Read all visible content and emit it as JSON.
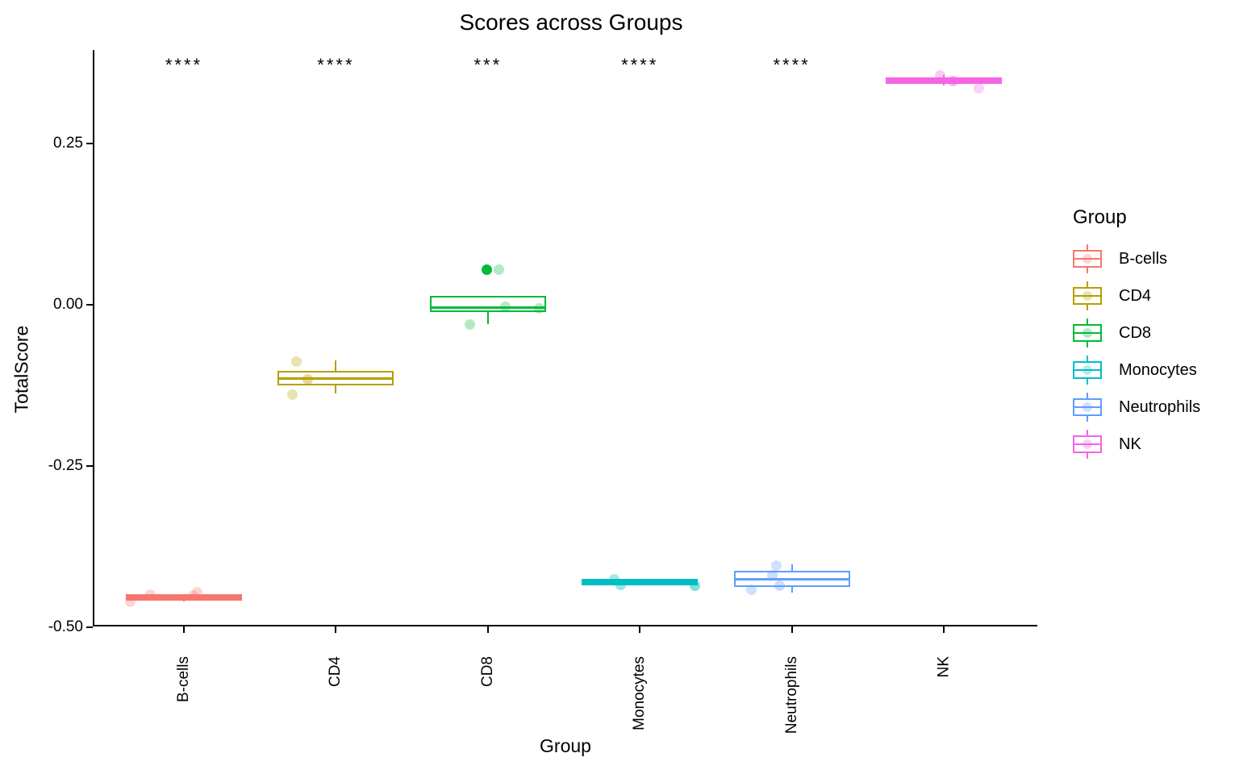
{
  "chart_data": {
    "type": "boxplot",
    "title": "Scores across Groups",
    "xlabel": "Group",
    "ylabel": "TotalScore",
    "ylim": [
      -0.52,
      0.4
    ],
    "grid": false,
    "background": "#ffffff",
    "axis_color": "#000000",
    "legend": {
      "title": "Group",
      "position": "right"
    },
    "y_axis": {
      "ticks": [
        {
          "value": 0.25,
          "label": "0.25"
        },
        {
          "value": 0.0,
          "label": "0.00"
        },
        {
          "value": -0.25,
          "label": "-0.25"
        },
        {
          "value": -0.5,
          "label": "-0.50"
        }
      ]
    },
    "groups": [
      {
        "name": "B-cells",
        "color": "#F8766D",
        "significance": "****",
        "box": {
          "median": -0.454,
          "q1": -0.4555,
          "q3": -0.4525,
          "whisker_low": -0.4605,
          "whisker_high": -0.4525
        },
        "points": [
          {
            "offset": -67,
            "value": -0.461,
            "alpha": 0.3
          },
          {
            "offset": -42,
            "value": -0.449,
            "alpha": 0.3
          },
          {
            "offset": 11,
            "value": -0.451,
            "alpha": 0.3
          },
          {
            "offset": 16,
            "value": -0.445,
            "alpha": 0.3
          }
        ]
      },
      {
        "name": "CD4",
        "color": "#B79F00",
        "significance": "****",
        "box": {
          "median": -0.114,
          "q1": -0.125,
          "q3": -0.1025,
          "whisker_low": -0.1375,
          "whisker_high": -0.086
        },
        "points": [
          {
            "offset": -49,
            "value": -0.0875,
            "alpha": 0.3
          },
          {
            "offset": -35,
            "value": -0.116,
            "alpha": 0.4
          },
          {
            "offset": -54,
            "value": -0.139,
            "alpha": 0.3
          }
        ]
      },
      {
        "name": "CD8",
        "color": "#00BA38",
        "significance": "***",
        "box": {
          "median": -0.004,
          "q1": -0.011,
          "q3": 0.014,
          "whisker_low": -0.03,
          "whisker_high": 0.014
        },
        "points": [
          {
            "offset": -1,
            "value": 0.055,
            "alpha": 1.0
          },
          {
            "offset": 14,
            "value": 0.054,
            "alpha": 0.3
          },
          {
            "offset": 22,
            "value": -0.0025,
            "alpha": 0.3
          },
          {
            "offset": 64,
            "value": -0.006,
            "alpha": 0.3
          },
          {
            "offset": -22,
            "value": -0.03,
            "alpha": 0.3
          }
        ]
      },
      {
        "name": "Monocytes",
        "color": "#00BFC4",
        "significance": "****",
        "box": {
          "median": -0.43,
          "q1": -0.431,
          "q3": -0.429,
          "whisker_low": -0.431,
          "whisker_high": -0.429
        },
        "points": [
          {
            "offset": -32,
            "value": -0.425,
            "alpha": 0.35
          },
          {
            "offset": -24,
            "value": -0.4345,
            "alpha": 0.4
          },
          {
            "offset": 68,
            "value": -0.4355,
            "alpha": 0.5
          }
        ]
      },
      {
        "name": "Neutrophils",
        "color": "#619CFF",
        "significance": "****",
        "box": {
          "median": -0.425,
          "q1": -0.4375,
          "q3": -0.4125,
          "whisker_low": -0.446,
          "whisker_high": -0.4025
        },
        "points": [
          {
            "offset": -19,
            "value": -0.404,
            "alpha": 0.3
          },
          {
            "offset": -24,
            "value": -0.419,
            "alpha": 0.35
          },
          {
            "offset": -15,
            "value": -0.435,
            "alpha": 0.35
          },
          {
            "offset": -50,
            "value": -0.4415,
            "alpha": 0.3
          }
        ]
      },
      {
        "name": "NK",
        "color": "#F564E3",
        "significance": "",
        "box": {
          "median": 0.3475,
          "q1": 0.3455,
          "q3": 0.3495,
          "whisker_low": 0.3395,
          "whisker_high": 0.356
        },
        "points": [
          {
            "offset": -5,
            "value": 0.3555,
            "alpha": 0.35
          },
          {
            "offset": 11,
            "value": 0.3475,
            "alpha": 0.5
          },
          {
            "offset": 43,
            "value": 0.336,
            "alpha": 0.3
          }
        ]
      }
    ]
  }
}
